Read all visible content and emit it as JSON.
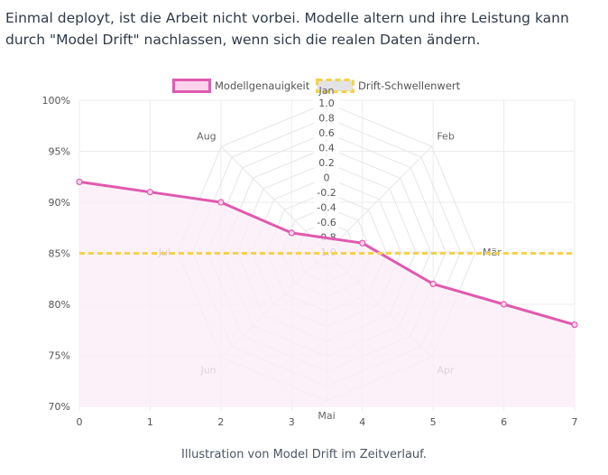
{
  "intro_text": "Einmal deployt, ist die Arbeit nicht vorbei. Modelle altern und ihre Leistung kann durch \"Model Drift\" nachlassen, wenn sich die realen Daten ändern.",
  "caption": "Illustration von Model Drift im Zeitverlauf.",
  "colors": {
    "accuracy_line": "#e05aaf",
    "accuracy_fill": "#fdeef7",
    "threshold_line": "#f3d34a",
    "threshold_legend_fill": "#e3e3e3",
    "grid": "#ececec",
    "radar_grid": "#e6e6e6"
  },
  "chart_data": [
    {
      "type": "line",
      "legend_position": "top-center",
      "x": [
        0,
        1,
        2,
        3,
        4,
        5,
        6,
        7
      ],
      "xlim": [
        0,
        7
      ],
      "ylim": [
        70,
        100
      ],
      "y_ticks": [
        "70%",
        "75%",
        "80%",
        "85%",
        "90%",
        "95%",
        "100%"
      ],
      "y_tick_values": [
        70,
        75,
        80,
        85,
        90,
        95,
        100
      ],
      "x_ticks": [
        "0",
        "1",
        "2",
        "3",
        "4",
        "5",
        "6",
        "7"
      ],
      "series": [
        {
          "name": "Modellgenauigkeit",
          "values": [
            92,
            91,
            90,
            87,
            86,
            82,
            80,
            78
          ],
          "filled": true
        },
        {
          "name": "Drift-Schwellenwert",
          "values": [
            85,
            85,
            85,
            85,
            85,
            85,
            85,
            85
          ],
          "dashed": true
        }
      ]
    },
    {
      "type": "radar",
      "labels": [
        "Jan",
        "Feb",
        "Mär",
        "Apr",
        "Mai",
        "Jun",
        "Jul",
        "Aug"
      ],
      "r_range": [
        -1.0,
        1.0
      ],
      "r_ticks": [
        "-1.0",
        "-0.8",
        "-0.6",
        "-0.4",
        "-0.2",
        "0",
        "0.2",
        "0.4",
        "0.6",
        "0.8",
        "1.0"
      ],
      "r_tick_values": [
        -1.0,
        -0.8,
        -0.6,
        -0.4,
        -0.2,
        0,
        0.2,
        0.4,
        0.6,
        0.8,
        1.0
      ]
    }
  ]
}
